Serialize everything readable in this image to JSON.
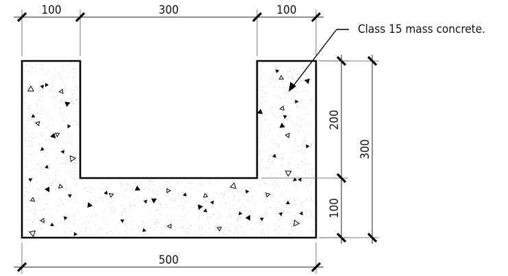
{
  "dimensions": {
    "top_left": "100",
    "top_middle": "300",
    "top_right": "100",
    "bottom_overall": "500",
    "right_upper": "200",
    "right_lower": "100",
    "right_overall": "300"
  },
  "note": {
    "text": "Class 15 mass concrete."
  }
}
